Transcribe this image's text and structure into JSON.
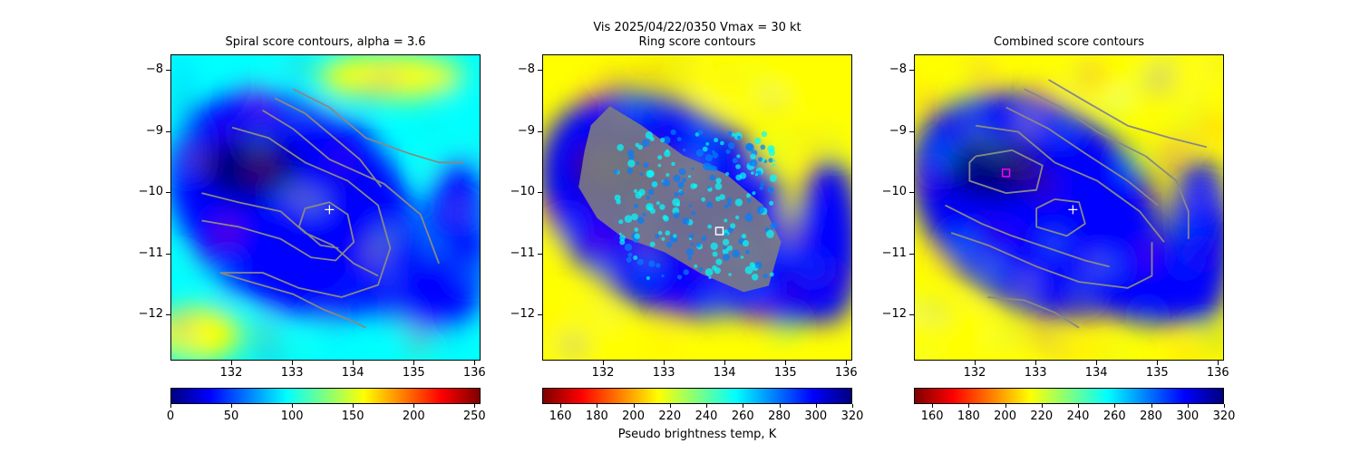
{
  "figure": {
    "suptitle": "Vis  2025/04/22/0350    Vmax = 30 kt",
    "colorbar_label": "Pseudo brightness temp, K",
    "jet_colors": [
      "#00007f",
      "#0000ff",
      "#007fff",
      "#00ffff",
      "#7fff7f",
      "#ffff00",
      "#ff7f00",
      "#ff0000",
      "#7f0000"
    ]
  },
  "chart_data": [
    {
      "type": "heatmap",
      "title": "Spiral score contours, alpha =  3.6",
      "xlim": [
        131.0,
        136.1
      ],
      "ylim": [
        -12.75,
        -7.75
      ],
      "xticks": [
        132,
        133,
        134,
        135,
        136
      ],
      "yticks": [
        -8,
        -9,
        -10,
        -11,
        -12
      ],
      "colormap": "jet",
      "colorbar": {
        "range": [
          0,
          255
        ],
        "ticks": [
          0,
          50,
          100,
          150,
          200,
          250
        ],
        "reversed": false
      },
      "marker": {
        "type": "plus",
        "lon": 133.6,
        "lat": -10.27,
        "color": "#ffffff"
      },
      "contour_color": "#888888",
      "contours": [
        [
          [
            131.5,
            -10.0
          ],
          [
            132.1,
            -10.15
          ],
          [
            132.8,
            -10.3
          ],
          [
            133.2,
            -10.65
          ],
          [
            133.65,
            -10.85
          ],
          [
            134.0,
            -11.15
          ],
          [
            134.4,
            -11.35
          ]
        ],
        [
          [
            131.5,
            -10.45
          ],
          [
            132.1,
            -10.55
          ],
          [
            132.8,
            -10.75
          ],
          [
            133.3,
            -11.05
          ],
          [
            133.7,
            -11.1
          ],
          [
            134.0,
            -10.8
          ],
          [
            133.9,
            -10.35
          ],
          [
            133.6,
            -10.15
          ],
          [
            133.2,
            -10.25
          ],
          [
            133.1,
            -10.55
          ],
          [
            133.45,
            -10.85
          ],
          [
            133.75,
            -10.9
          ]
        ],
        [
          [
            132.0,
            -8.93
          ],
          [
            132.6,
            -9.1
          ],
          [
            133.2,
            -9.5
          ],
          [
            133.9,
            -9.8
          ],
          [
            134.4,
            -10.2
          ],
          [
            134.6,
            -10.9
          ],
          [
            134.4,
            -11.5
          ],
          [
            133.8,
            -11.7
          ],
          [
            133.1,
            -11.55
          ],
          [
            132.5,
            -11.3
          ],
          [
            131.8,
            -11.3
          ]
        ],
        [
          [
            132.5,
            -8.65
          ],
          [
            133.0,
            -8.95
          ],
          [
            133.6,
            -9.45
          ],
          [
            134.5,
            -9.85
          ],
          [
            135.1,
            -10.35
          ],
          [
            135.4,
            -11.15
          ]
        ],
        [
          [
            132.7,
            -8.45
          ],
          [
            133.2,
            -8.7
          ],
          [
            133.8,
            -9.2
          ],
          [
            134.1,
            -9.45
          ],
          [
            134.45,
            -9.9
          ]
        ],
        [
          [
            133.0,
            -8.3
          ],
          [
            133.6,
            -8.6
          ],
          [
            134.2,
            -9.1
          ],
          [
            134.9,
            -9.35
          ],
          [
            135.4,
            -9.5
          ],
          [
            135.8,
            -9.5
          ]
        ],
        [
          [
            131.8,
            -11.3
          ],
          [
            132.3,
            -11.45
          ],
          [
            133.0,
            -11.65
          ],
          [
            133.5,
            -11.9
          ],
          [
            134.0,
            -12.1
          ],
          [
            134.2,
            -12.2
          ]
        ]
      ]
    },
    {
      "type": "heatmap",
      "title": "Ring score contours",
      "xlim": [
        131.0,
        136.1
      ],
      "ylim": [
        -12.75,
        -7.75
      ],
      "xticks": [
        132,
        133,
        134,
        135,
        136
      ],
      "yticks": [
        -8,
        -9,
        -10,
        -11,
        -12
      ],
      "colormap": "jet_r",
      "colorbar": {
        "range": [
          150,
          320
        ],
        "ticks": [
          160,
          180,
          200,
          220,
          240,
          260,
          280,
          300,
          320
        ],
        "reversed": true
      },
      "marker": {
        "type": "square",
        "lon": 133.9,
        "lat": -10.62,
        "color": "#ffffff"
      },
      "contour_color": "#808080",
      "region": {
        "polygon": [
          [
            132.1,
            -8.6
          ],
          [
            132.6,
            -8.9
          ],
          [
            133.3,
            -9.4
          ],
          [
            134.0,
            -9.7
          ],
          [
            134.6,
            -10.2
          ],
          [
            134.9,
            -10.8
          ],
          [
            134.7,
            -11.5
          ],
          [
            134.3,
            -11.6
          ],
          [
            133.6,
            -11.3
          ],
          [
            133.0,
            -10.95
          ],
          [
            132.3,
            -10.7
          ],
          [
            131.9,
            -10.4
          ],
          [
            131.6,
            -9.9
          ],
          [
            131.7,
            -9.3
          ],
          [
            131.8,
            -8.9
          ]
        ]
      }
    },
    {
      "type": "heatmap",
      "title": "Combined score contours",
      "xlim": [
        131.0,
        136.1
      ],
      "ylim": [
        -12.75,
        -7.75
      ],
      "xticks": [
        132,
        133,
        134,
        135,
        136
      ],
      "yticks": [
        -8,
        -9,
        -10,
        -11,
        -12
      ],
      "colormap": "jet_r",
      "colorbar": {
        "range": [
          150,
          320
        ],
        "ticks": [
          160,
          180,
          200,
          220,
          240,
          260,
          280,
          300,
          320
        ],
        "reversed": true
      },
      "markers": [
        {
          "type": "plus",
          "lon": 133.6,
          "lat": -10.27,
          "color": "#ffffff"
        },
        {
          "type": "square",
          "lon": 132.5,
          "lat": -9.67,
          "color": "#ff00ff"
        }
      ],
      "contour_color": "#888888",
      "contours": [
        [
          [
            132.0,
            -9.4
          ],
          [
            132.6,
            -9.3
          ],
          [
            133.1,
            -9.55
          ],
          [
            133.0,
            -9.95
          ],
          [
            132.5,
            -10.0
          ],
          [
            131.9,
            -9.8
          ],
          [
            131.9,
            -9.5
          ],
          [
            132.0,
            -9.4
          ]
        ],
        [
          [
            133.3,
            -10.1
          ],
          [
            133.7,
            -10.15
          ],
          [
            133.8,
            -10.5
          ],
          [
            133.5,
            -10.7
          ],
          [
            133.0,
            -10.55
          ],
          [
            133.0,
            -10.25
          ],
          [
            133.3,
            -10.1
          ]
        ],
        [
          [
            131.5,
            -10.2
          ],
          [
            132.1,
            -10.5
          ],
          [
            132.6,
            -10.7
          ],
          [
            133.2,
            -10.9
          ],
          [
            133.8,
            -11.1
          ],
          [
            134.2,
            -11.2
          ]
        ],
        [
          [
            131.6,
            -10.65
          ],
          [
            132.2,
            -10.85
          ],
          [
            133.0,
            -11.2
          ],
          [
            133.7,
            -11.45
          ],
          [
            134.5,
            -11.55
          ],
          [
            134.9,
            -11.35
          ],
          [
            134.9,
            -10.8
          ]
        ],
        [
          [
            132.0,
            -8.9
          ],
          [
            132.7,
            -9.0
          ],
          [
            133.3,
            -9.5
          ],
          [
            134.0,
            -9.8
          ],
          [
            134.7,
            -10.3
          ],
          [
            135.1,
            -10.8
          ]
        ],
        [
          [
            132.5,
            -8.6
          ],
          [
            133.2,
            -8.95
          ],
          [
            133.8,
            -9.35
          ],
          [
            134.5,
            -9.8
          ],
          [
            135.0,
            -10.2
          ]
        ],
        [
          [
            132.8,
            -8.3
          ],
          [
            133.4,
            -8.6
          ],
          [
            134.0,
            -9.0
          ],
          [
            134.8,
            -9.4
          ],
          [
            135.3,
            -9.8
          ],
          [
            135.5,
            -10.3
          ],
          [
            135.5,
            -10.75
          ]
        ],
        [
          [
            133.2,
            -8.15
          ],
          [
            133.8,
            -8.5
          ],
          [
            134.5,
            -8.9
          ],
          [
            135.2,
            -9.1
          ],
          [
            135.8,
            -9.25
          ]
        ],
        [
          [
            132.2,
            -11.7
          ],
          [
            132.8,
            -11.75
          ],
          [
            133.3,
            -11.95
          ],
          [
            133.7,
            -12.2
          ]
        ]
      ]
    }
  ]
}
